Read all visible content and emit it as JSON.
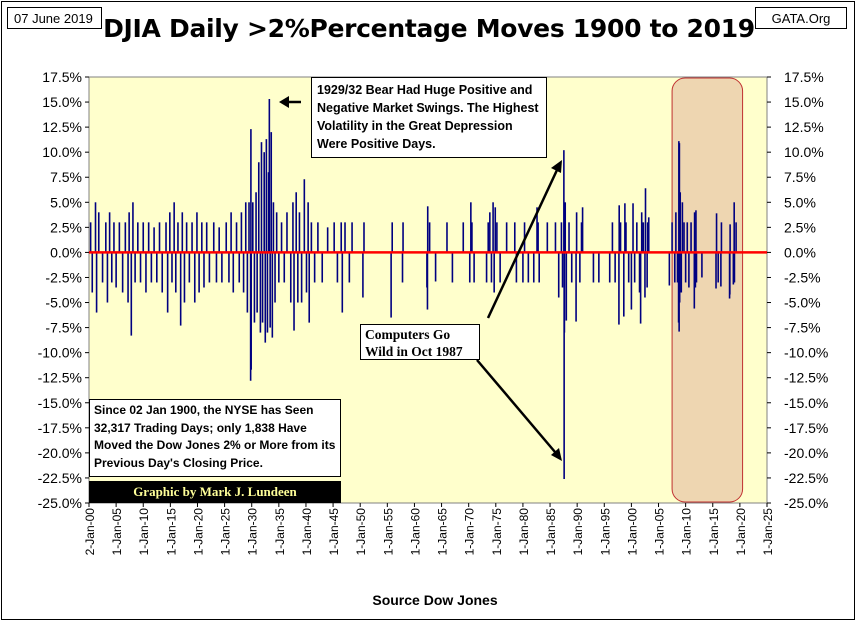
{
  "header": {
    "date": "07 June 2019",
    "site": "GATA.Org",
    "title": "DJIA Daily >2%Percentage Moves 1900 to 2019"
  },
  "footer": {
    "source": "Source Dow Jones"
  },
  "annotations": {
    "bear": "1929/32 Bear Had Huge Positive and Negative Market Swings. The Highest Volatility in the Great Depression Were Positive Days.",
    "computers": "Computers Go Wild in Oct 1987",
    "nyse": "Since 02 Jan 1900, the NYSE has Seen 32,317 Trading Days; only 1,838 Have Moved the Dow Jones 2% or More from its Previous Day's Closing Price.",
    "credit": "Graphic by Mark J. Lundeen"
  },
  "colors": {
    "plot_bg": "#ffffcc",
    "bars": "#000080",
    "zero_line": "#ff0000",
    "highlight_fill": "#e8c8a8",
    "highlight_border": "#c03030"
  },
  "chart_data": {
    "type": "bar",
    "title": "DJIA Daily >2%Percentage Moves 1900 to 2019",
    "xlabel": "Source Dow Jones",
    "ylabel": "",
    "ylim": [
      -25,
      17.5
    ],
    "xlim": [
      1900,
      2025
    ],
    "y_ticks": [
      "17.5%",
      "15.0%",
      "12.5%",
      "10.0%",
      "7.5%",
      "5.0%",
      "2.5%",
      "0.0%",
      "-2.5%",
      "-5.0%",
      "-7.5%",
      "-10.0%",
      "-12.5%",
      "-15.0%",
      "-17.5%",
      "-20.0%",
      "-22.5%",
      "-25.0%"
    ],
    "x_ticks": [
      "2-Jan-00",
      "1-Jan-05",
      "1-Jan-10",
      "1-Jan-15",
      "1-Jan-20",
      "1-Jan-25",
      "1-Jan-30",
      "1-Jan-35",
      "1-Jan-40",
      "1-Jan-45",
      "1-Jan-50",
      "1-Jan-55",
      "1-Jan-60",
      "1-Jan-65",
      "1-Jan-70",
      "1-Jan-75",
      "1-Jan-80",
      "1-Jan-85",
      "1-Jan-90",
      "1-Jan-95",
      "1-Jan-00",
      "1-Jan-05",
      "1-Jan-10",
      "1-Jan-15",
      "1-Jan-20",
      "1-Jan-25"
    ],
    "grid": false,
    "highlight_period": [
      2007.5,
      2020.5
    ],
    "series": [
      {
        "values": [
          [
            1900.3,
            3.0
          ],
          [
            1900.6,
            -4.0
          ],
          [
            1901.2,
            5.0
          ],
          [
            1901.4,
            -6.0
          ],
          [
            1901.8,
            4.0
          ],
          [
            1902.5,
            -3.0
          ],
          [
            1903.1,
            3.0
          ],
          [
            1903.4,
            -5.0
          ],
          [
            1903.8,
            4.0
          ],
          [
            1904.2,
            -3.0
          ],
          [
            1904.6,
            3.0
          ],
          [
            1905.0,
            -3.5
          ],
          [
            1905.6,
            3.0
          ],
          [
            1906.2,
            -4.0
          ],
          [
            1906.7,
            3.0
          ],
          [
            1907.2,
            -5.0
          ],
          [
            1907.4,
            4.0
          ],
          [
            1907.8,
            -8.3
          ],
          [
            1908.1,
            5.0
          ],
          [
            1908.5,
            -3.0
          ],
          [
            1909.0,
            3.0
          ],
          [
            1909.5,
            -3.0
          ],
          [
            1910.0,
            3.0
          ],
          [
            1910.5,
            -4.0
          ],
          [
            1911.0,
            3.0
          ],
          [
            1911.5,
            -3.0
          ],
          [
            1912.0,
            2.5
          ],
          [
            1912.5,
            -3.0
          ],
          [
            1913.0,
            3.0
          ],
          [
            1913.5,
            -4.0
          ],
          [
            1914.2,
            3.0
          ],
          [
            1914.5,
            -6.0
          ],
          [
            1914.9,
            4.0
          ],
          [
            1915.3,
            -3.0
          ],
          [
            1915.7,
            5.0
          ],
          [
            1916.0,
            -4.0
          ],
          [
            1916.4,
            3.0
          ],
          [
            1916.9,
            -7.3
          ],
          [
            1917.2,
            4.0
          ],
          [
            1917.6,
            -5.0
          ],
          [
            1918.0,
            3.0
          ],
          [
            1918.5,
            -3.0
          ],
          [
            1919.0,
            3.0
          ],
          [
            1919.5,
            -5.0
          ],
          [
            1919.9,
            4.0
          ],
          [
            1920.3,
            -4.0
          ],
          [
            1920.8,
            3.0
          ],
          [
            1921.2,
            -3.5
          ],
          [
            1921.7,
            3.0
          ],
          [
            1922.2,
            -3.0
          ],
          [
            1923.0,
            3.0
          ],
          [
            1923.5,
            -3.0
          ],
          [
            1924.0,
            2.5
          ],
          [
            1924.5,
            -3.0
          ],
          [
            1925.3,
            3.0
          ],
          [
            1925.8,
            -3.0
          ],
          [
            1926.2,
            4.0
          ],
          [
            1926.6,
            -4.0
          ],
          [
            1927.2,
            3.0
          ],
          [
            1927.7,
            -3.0
          ],
          [
            1928.1,
            4.0
          ],
          [
            1928.5,
            -4.0
          ],
          [
            1928.9,
            5.0
          ],
          [
            1929.2,
            -6.0
          ],
          [
            1929.5,
            5.0
          ],
          [
            1929.8,
            -12.8
          ],
          [
            1929.85,
            12.3
          ],
          [
            1929.9,
            -11.7
          ],
          [
            1930.2,
            5.0
          ],
          [
            1930.5,
            -7.0
          ],
          [
            1930.8,
            6.0
          ],
          [
            1931.0,
            -6.0
          ],
          [
            1931.3,
            9.0
          ],
          [
            1931.6,
            -8.0
          ],
          [
            1931.8,
            11.0
          ],
          [
            1932.0,
            -7.0
          ],
          [
            1932.3,
            10.0
          ],
          [
            1932.5,
            -9.0
          ],
          [
            1932.7,
            11.3
          ],
          [
            1932.9,
            -8.0
          ],
          [
            1933.1,
            8.0
          ],
          [
            1933.25,
            15.3
          ],
          [
            1933.4,
            -7.5
          ],
          [
            1933.6,
            12.0
          ],
          [
            1933.8,
            -8.5
          ],
          [
            1934.0,
            5.0
          ],
          [
            1934.3,
            -5.0
          ],
          [
            1934.6,
            4.0
          ],
          [
            1935.0,
            -3.0
          ],
          [
            1935.5,
            3.0
          ],
          [
            1936.0,
            -3.0
          ],
          [
            1936.5,
            4.0
          ],
          [
            1937.2,
            -5.0
          ],
          [
            1937.6,
            5.0
          ],
          [
            1937.8,
            -7.8
          ],
          [
            1938.2,
            6.0
          ],
          [
            1938.5,
            -5.0
          ],
          [
            1938.8,
            4.0
          ],
          [
            1939.2,
            -5.0
          ],
          [
            1939.7,
            7.3
          ],
          [
            1940.1,
            -4.0
          ],
          [
            1940.4,
            5.0
          ],
          [
            1940.6,
            -7.0
          ],
          [
            1941.0,
            3.0
          ],
          [
            1941.6,
            -3.0
          ],
          [
            1942.2,
            3.0
          ],
          [
            1943.0,
            -3.0
          ],
          [
            1944.0,
            2.5
          ],
          [
            1945.2,
            3.0
          ],
          [
            1945.8,
            -3.0
          ],
          [
            1946.5,
            3.0
          ],
          [
            1946.7,
            -6.0
          ],
          [
            1947.2,
            3.0
          ],
          [
            1948.0,
            -3.0
          ],
          [
            1948.5,
            3.0
          ],
          [
            1950.5,
            -4.5
          ],
          [
            1950.7,
            3.0
          ],
          [
            1955.7,
            -6.5
          ],
          [
            1955.9,
            3.0
          ],
          [
            1957.8,
            -3.0
          ],
          [
            1957.9,
            3.0
          ],
          [
            1962.3,
            -3.5
          ],
          [
            1962.4,
            -5.7
          ],
          [
            1962.45,
            4.6
          ],
          [
            1962.8,
            3.0
          ],
          [
            1963.9,
            -2.9
          ],
          [
            1966.0,
            3.0
          ],
          [
            1967.0,
            -3.0
          ],
          [
            1969.0,
            3.0
          ],
          [
            1970.2,
            -3.0
          ],
          [
            1970.4,
            5.0
          ],
          [
            1970.6,
            3.0
          ],
          [
            1971.0,
            -3.0
          ],
          [
            1973.3,
            -3.0
          ],
          [
            1973.6,
            3.0
          ],
          [
            1973.9,
            4.0
          ],
          [
            1974.2,
            -3.0
          ],
          [
            1974.5,
            5.0
          ],
          [
            1974.7,
            -4.0
          ],
          [
            1974.9,
            4.5
          ],
          [
            1975.2,
            3.0
          ],
          [
            1975.8,
            -3.0
          ],
          [
            1977.0,
            3.0
          ],
          [
            1978.5,
            3.0
          ],
          [
            1978.8,
            -3.0
          ],
          [
            1980.0,
            -3.0
          ],
          [
            1980.3,
            3.0
          ],
          [
            1981.0,
            -3.0
          ],
          [
            1982.0,
            -3.0
          ],
          [
            1982.6,
            4.5
          ],
          [
            1982.8,
            3.0
          ],
          [
            1983.0,
            -3.0
          ],
          [
            1984.5,
            3.0
          ],
          [
            1986.0,
            3.0
          ],
          [
            1986.6,
            -4.5
          ],
          [
            1987.1,
            3.0
          ],
          [
            1987.3,
            -3.5
          ],
          [
            1987.55,
            10.2
          ],
          [
            1987.6,
            -22.6
          ],
          [
            1987.65,
            -8.0
          ],
          [
            1987.8,
            5.0
          ],
          [
            1988.0,
            -6.8
          ],
          [
            1988.5,
            3.0
          ],
          [
            1989.0,
            -3.0
          ],
          [
            1989.8,
            -6.9
          ],
          [
            1989.9,
            4.0
          ],
          [
            1990.5,
            -3.0
          ],
          [
            1990.8,
            3.0
          ],
          [
            1991.0,
            4.5
          ],
          [
            1993.0,
            -3.0
          ],
          [
            1994.0,
            -3.0
          ],
          [
            1996.0,
            -3.0
          ],
          [
            1996.5,
            3.0
          ],
          [
            1997.0,
            -3.0
          ],
          [
            1997.7,
            -7.2
          ],
          [
            1997.75,
            4.7
          ],
          [
            1998.0,
            3.0
          ],
          [
            1998.6,
            -6.4
          ],
          [
            1998.8,
            4.9
          ],
          [
            1999.0,
            3.0
          ],
          [
            1999.5,
            -3.0
          ],
          [
            2000.0,
            -5.7
          ],
          [
            2000.3,
            4.9
          ],
          [
            2000.6,
            -3.0
          ],
          [
            2001.0,
            3.0
          ],
          [
            2001.5,
            -4.0
          ],
          [
            2001.7,
            -7.1
          ],
          [
            2001.9,
            4.0
          ],
          [
            2002.2,
            3.0
          ],
          [
            2002.5,
            -4.5
          ],
          [
            2002.6,
            6.4
          ],
          [
            2002.9,
            -3.5
          ],
          [
            2003.0,
            3.0
          ],
          [
            2003.2,
            3.5
          ],
          [
            2007.0,
            -3.3
          ],
          [
            2007.5,
            3.0
          ],
          [
            2008.0,
            -3.0
          ],
          [
            2008.2,
            4.0
          ],
          [
            2008.5,
            -3.0
          ],
          [
            2008.7,
            -7.0
          ],
          [
            2008.75,
            11.1
          ],
          [
            2008.8,
            -7.9
          ],
          [
            2008.85,
            10.9
          ],
          [
            2008.9,
            -5.0
          ],
          [
            2009.0,
            6.0
          ],
          [
            2009.2,
            -4.0
          ],
          [
            2009.4,
            5.0
          ],
          [
            2009.7,
            3.0
          ],
          [
            2010.0,
            -3.0
          ],
          [
            2010.3,
            3.0
          ],
          [
            2010.6,
            -3.5
          ],
          [
            2011.0,
            3.0
          ],
          [
            2011.6,
            -5.6
          ],
          [
            2011.65,
            4.0
          ],
          [
            2011.8,
            -3.5
          ],
          [
            2011.9,
            4.2
          ],
          [
            2012.0,
            -3.0
          ],
          [
            2013.0,
            -2.5
          ],
          [
            2015.6,
            -3.6
          ],
          [
            2015.7,
            3.9
          ],
          [
            2016.0,
            -3.0
          ],
          [
            2016.5,
            -3.4
          ],
          [
            2016.6,
            3.0
          ],
          [
            2018.1,
            -4.6
          ],
          [
            2018.15,
            -4.2
          ],
          [
            2018.2,
            2.8
          ],
          [
            2018.8,
            -3.2
          ],
          [
            2018.95,
            5.0
          ],
          [
            2019.0,
            -3.0
          ],
          [
            2019.3,
            3.0
          ]
        ]
      }
    ]
  }
}
